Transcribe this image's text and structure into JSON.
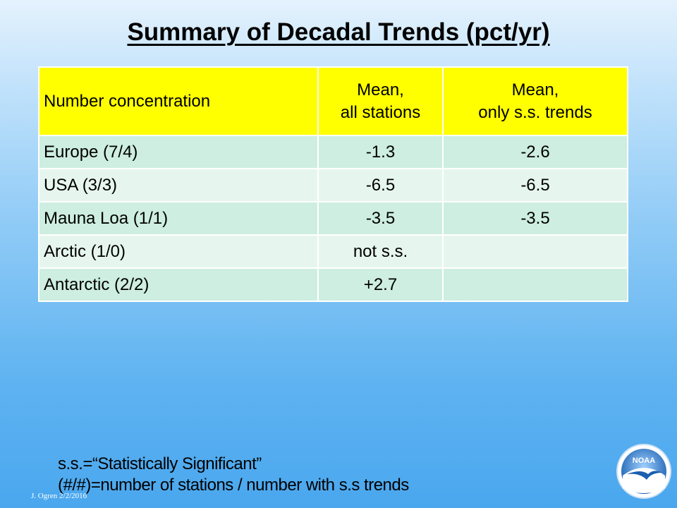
{
  "slide": {
    "title": "Summary of Decadal Trends (pct/yr)",
    "credit": "J. Ogren  2/2/2016",
    "logo_text": "NOAA"
  },
  "table": {
    "headers": {
      "col1": "Number concentration",
      "col2_line1": "Mean,",
      "col2_line2": "all stations",
      "col3_line1": "Mean,",
      "col3_line2": "only s.s. trends"
    },
    "rows": [
      {
        "region": "Europe (7/4)",
        "mean_all": "-1.3",
        "mean_ss": "-2.6"
      },
      {
        "region": "USA (3/3)",
        "mean_all": "-6.5",
        "mean_ss": "-6.5"
      },
      {
        "region": "Mauna Loa (1/1)",
        "mean_all": "-3.5",
        "mean_ss": "-3.5"
      },
      {
        "region": "Arctic (1/0)",
        "mean_all": "not s.s.",
        "mean_ss": ""
      },
      {
        "region": "Antarctic (2/2)",
        "mean_all": "+2.7",
        "mean_ss": ""
      }
    ]
  },
  "notes": {
    "line1": "s.s.=“Statistically Significant”",
    "line2": "(#/#)=number of stations / number with s.s trends"
  },
  "colors": {
    "header_bg": "#ffff00",
    "row_odd_bg": "#cdeee0",
    "row_even_bg": "#e6f6ef"
  }
}
